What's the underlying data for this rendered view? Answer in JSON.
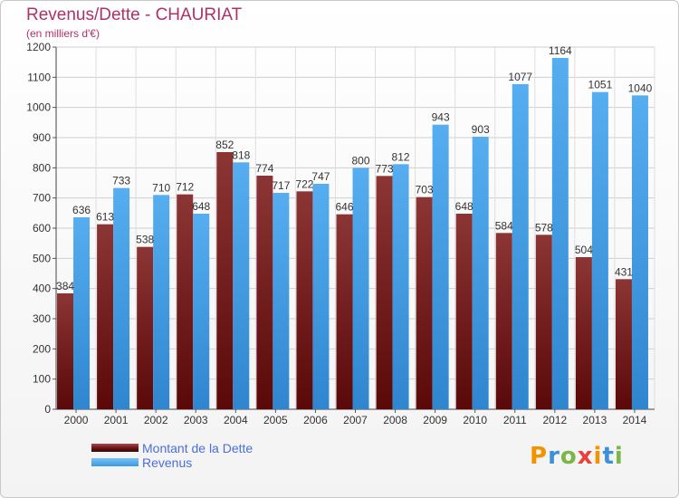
{
  "chart_data": {
    "type": "bar",
    "title": "Revenus/Dette - CHAURIAT",
    "subtitle": "(en milliers d'€)",
    "categories": [
      "2000",
      "2001",
      "2002",
      "2003",
      "2004",
      "2005",
      "2006",
      "2007",
      "2008",
      "2009",
      "2010",
      "2011",
      "2012",
      "2013",
      "2014"
    ],
    "series": [
      {
        "name": "Montant de la Dette",
        "color": "#6e1a1a",
        "values": [
          384,
          613,
          538,
          712,
          852,
          774,
          722,
          646,
          773,
          703,
          648,
          584,
          578,
          504,
          431
        ]
      },
      {
        "name": "Revenus",
        "color": "#3d9ae3",
        "values": [
          636,
          733,
          710,
          648,
          818,
          717,
          747,
          800,
          812,
          943,
          903,
          1077,
          1164,
          1051,
          1040
        ]
      }
    ],
    "ylim": [
      0,
      1200
    ],
    "yticks": [
      0,
      100,
      200,
      300,
      400,
      500,
      600,
      700,
      800,
      900,
      1000,
      1100,
      1200
    ],
    "grid": true,
    "legend_position": "bottom-left"
  },
  "logo": {
    "letters": [
      "P",
      "r",
      "o",
      "x",
      "i",
      "t",
      "i"
    ],
    "colors": [
      "#f29400",
      "#3d8fd8",
      "#7ab648",
      "#e8403c",
      "#f29400",
      "#3d8fd8",
      "#7ab648"
    ]
  }
}
